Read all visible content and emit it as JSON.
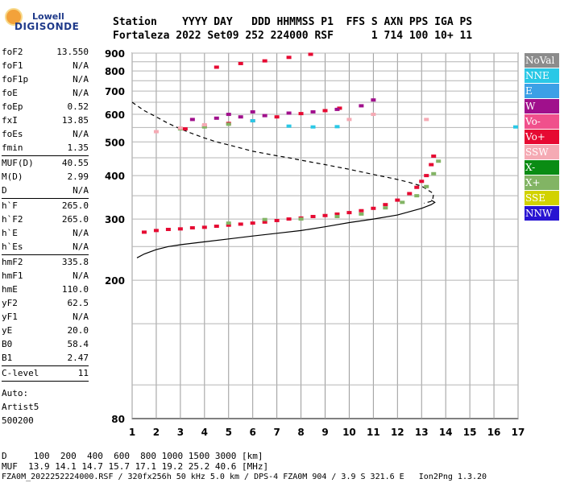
{
  "logo": {
    "line1": "Lowell",
    "line2": "DIGISONDE"
  },
  "header": {
    "line1": "Station    YYYY DAY   DDD HHMMSS P1  FFS S AXN PPS IGA PS",
    "line2": "Fortaleza 2022 Set09 252 224000 RSF      1 714 100 10+ 11"
  },
  "params": {
    "group1": [
      {
        "name": "foF2",
        "value": "13.550"
      },
      {
        "name": "foF1",
        "value": "N/A"
      },
      {
        "name": "foF1p",
        "value": "N/A"
      },
      {
        "name": "foE",
        "value": "N/A"
      },
      {
        "name": "foEp",
        "value": "0.52"
      },
      {
        "name": "fxI",
        "value": "13.85"
      },
      {
        "name": "foEs",
        "value": "N/A"
      },
      {
        "name": "fmin",
        "value": "1.35"
      }
    ],
    "group2": [
      {
        "name": "MUF(D)",
        "value": "40.55"
      },
      {
        "name": "M(D)",
        "value": "2.99"
      },
      {
        "name": "D",
        "value": "N/A"
      }
    ],
    "group3": [
      {
        "name": "h`F",
        "value": "265.0"
      },
      {
        "name": "h`F2",
        "value": "265.0"
      },
      {
        "name": "h`E",
        "value": "N/A"
      },
      {
        "name": "h`Es",
        "value": "N/A"
      }
    ],
    "group4": [
      {
        "name": "hmF2",
        "value": "335.8"
      },
      {
        "name": "hmF1",
        "value": "N/A"
      },
      {
        "name": "hmE",
        "value": "110.0"
      },
      {
        "name": "yF2",
        "value": "62.5"
      },
      {
        "name": "yF1",
        "value": "N/A"
      },
      {
        "name": "yE",
        "value": "20.0"
      },
      {
        "name": "B0",
        "value": "58.4"
      },
      {
        "name": "B1",
        "value": "2.47"
      }
    ],
    "group5": [
      {
        "name": "C-level",
        "value": "11"
      }
    ],
    "auto": [
      "Auto:",
      "Artist5",
      "500200"
    ]
  },
  "legend": [
    {
      "label": "NoVal",
      "color": "#8c8c8c"
    },
    {
      "label": "NNE",
      "color": "#2ac8e6"
    },
    {
      "label": "E",
      "color": "#3ca0e6"
    },
    {
      "label": "W",
      "color": "#a0108c"
    },
    {
      "label": "Vo-",
      "color": "#f0508c"
    },
    {
      "label": "Vo+",
      "color": "#e60a32"
    },
    {
      "label": "SSW",
      "color": "#f5aab4"
    },
    {
      "label": "X-",
      "color": "#0a8c14"
    },
    {
      "label": "X+",
      "color": "#82b464"
    },
    {
      "label": "SSE",
      "color": "#d2d200"
    },
    {
      "label": "NNW",
      "color": "#2814d2"
    }
  ],
  "footer": {
    "line1": "D     100  200  400  600  800 1000 1500 3000 [km]",
    "line2": "MUF  13.9 14.1 14.7 15.7 17.1 19.2 25.2 40.6 [MHz]",
    "line3": "FZA0M_2022252224000.RSF / 320fx256h 50 kHz 5.0 km / DPS-4 FZA0M 904 / 3.9 S 321.6 E   Ion2Png 1.3.20"
  },
  "chart_data": {
    "type": "scatter",
    "xlim": [
      1,
      17
    ],
    "ylim": [
      80,
      900
    ],
    "yscale": "log",
    "xticks": [
      1,
      2,
      3,
      4,
      5,
      6,
      7,
      8,
      9,
      10,
      11,
      12,
      13,
      14,
      15,
      16,
      17
    ],
    "yticks": [
      80,
      200,
      300,
      400,
      500,
      600,
      700,
      800,
      900
    ],
    "grid": true,
    "series": [
      {
        "name": "Vo+",
        "color": "#e60a32",
        "points": [
          [
            1.5,
            275
          ],
          [
            2.0,
            278
          ],
          [
            2.5,
            280
          ],
          [
            3.0,
            281
          ],
          [
            3.5,
            283
          ],
          [
            4.0,
            284
          ],
          [
            4.5,
            286
          ],
          [
            5.0,
            288
          ],
          [
            5.5,
            290
          ],
          [
            6.0,
            292
          ],
          [
            6.5,
            294
          ],
          [
            7.0,
            297
          ],
          [
            7.5,
            300
          ],
          [
            8.0,
            302
          ],
          [
            8.5,
            305
          ],
          [
            9.0,
            307
          ],
          [
            9.5,
            310
          ],
          [
            10.0,
            313
          ],
          [
            10.5,
            317
          ],
          [
            11.0,
            322
          ],
          [
            11.5,
            330
          ],
          [
            12.0,
            340
          ],
          [
            12.5,
            355
          ],
          [
            12.8,
            370
          ],
          [
            13.0,
            385
          ],
          [
            13.2,
            400
          ],
          [
            13.4,
            430
          ],
          [
            13.5,
            455
          ],
          [
            3.2,
            545
          ],
          [
            4.0,
            555
          ],
          [
            5.0,
            565
          ],
          [
            6.0,
            575
          ],
          [
            7.0,
            590
          ],
          [
            8.0,
            603
          ],
          [
            9.0,
            615
          ],
          [
            9.6,
            625
          ],
          [
            4.5,
            820
          ],
          [
            5.5,
            840
          ],
          [
            6.5,
            855
          ],
          [
            7.5,
            875
          ],
          [
            8.4,
            893
          ]
        ]
      },
      {
        "name": "W",
        "color": "#a0108c",
        "points": [
          [
            3.5,
            580
          ],
          [
            4.5,
            585
          ],
          [
            5.5,
            590
          ],
          [
            6.5,
            595
          ],
          [
            7.5,
            605
          ],
          [
            8.5,
            610
          ],
          [
            9.5,
            620
          ],
          [
            10.5,
            635
          ],
          [
            11.0,
            660
          ],
          [
            5.0,
            600
          ],
          [
            6.0,
            610
          ]
        ]
      },
      {
        "name": "X+",
        "color": "#82b464",
        "points": [
          [
            5.0,
            292
          ],
          [
            6.5,
            299
          ],
          [
            8.0,
            300
          ],
          [
            9.5,
            305
          ],
          [
            10.5,
            310
          ],
          [
            11.5,
            323
          ],
          [
            12.2,
            335
          ],
          [
            12.8,
            350
          ],
          [
            13.2,
            372
          ],
          [
            13.5,
            405
          ],
          [
            13.7,
            440
          ],
          [
            3.0,
            545
          ],
          [
            4.0,
            552
          ],
          [
            5.0,
            562
          ]
        ]
      },
      {
        "name": "NNE",
        "color": "#2ac8e6",
        "points": [
          [
            6.0,
            575
          ],
          [
            7.5,
            555
          ],
          [
            8.5,
            552
          ],
          [
            9.5,
            553
          ],
          [
            16.9,
            552
          ]
        ]
      },
      {
        "name": "SSW",
        "color": "#f5aab4",
        "points": [
          [
            2.0,
            535
          ],
          [
            3.0,
            548
          ],
          [
            4.0,
            560
          ],
          [
            10.0,
            580
          ],
          [
            11.0,
            600
          ],
          [
            13.2,
            580
          ]
        ]
      }
    ],
    "curves": [
      {
        "name": "virtual height trace (dashed)",
        "style": "dashed",
        "points": [
          [
            1.0,
            650
          ],
          [
            1.5,
            615
          ],
          [
            2.0,
            590
          ],
          [
            2.5,
            565
          ],
          [
            3.0,
            545
          ],
          [
            3.5,
            528
          ],
          [
            4.0,
            513
          ],
          [
            4.5,
            500
          ],
          [
            5.0,
            490
          ],
          [
            5.5,
            480
          ],
          [
            6.0,
            470
          ],
          [
            6.5,
            463
          ],
          [
            7.0,
            456
          ],
          [
            7.5,
            450
          ],
          [
            8.0,
            443
          ],
          [
            9.0,
            430
          ],
          [
            10.0,
            417
          ],
          [
            11.0,
            403
          ],
          [
            12.0,
            390
          ],
          [
            12.5,
            382
          ],
          [
            13.0,
            373
          ],
          [
            13.5,
            355
          ],
          [
            13.45,
            338
          ],
          [
            13.1,
            333
          ]
        ]
      },
      {
        "name": "true height profile",
        "style": "solid",
        "points": [
          [
            1.2,
            232
          ],
          [
            1.5,
            238
          ],
          [
            2.0,
            245
          ],
          [
            2.5,
            250
          ],
          [
            3.0,
            253
          ],
          [
            4.0,
            258
          ],
          [
            5.0,
            263
          ],
          [
            6.0,
            268
          ],
          [
            7.0,
            273
          ],
          [
            8.0,
            278
          ],
          [
            9.0,
            285
          ],
          [
            10.0,
            293
          ],
          [
            11.0,
            300
          ],
          [
            12.0,
            308
          ],
          [
            12.5,
            315
          ],
          [
            13.0,
            322
          ],
          [
            13.4,
            330
          ],
          [
            13.55,
            335
          ],
          [
            13.4,
            340
          ]
        ]
      }
    ]
  }
}
